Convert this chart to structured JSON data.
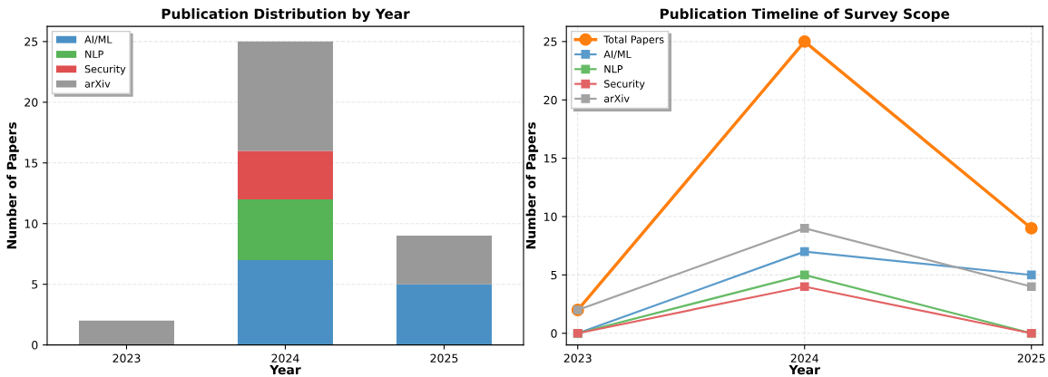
{
  "chart_data": [
    {
      "type": "bar",
      "title": "Publication Distribution by Year",
      "xlabel": "Year",
      "ylabel": "Number of Papers",
      "categories": [
        "2023",
        "2024",
        "2025"
      ],
      "stacked": true,
      "ylim": [
        0,
        26.25
      ],
      "yticks": [
        0,
        5,
        10,
        15,
        20,
        25
      ],
      "grid": "y",
      "legend": "top left",
      "series": [
        {
          "name": "AI/ML",
          "color": "#4a90c4",
          "values": [
            0,
            7,
            5
          ]
        },
        {
          "name": "NLP",
          "color": "#56b356",
          "values": [
            0,
            5,
            0
          ]
        },
        {
          "name": "Security",
          "color": "#df4f50",
          "values": [
            0,
            4,
            0
          ]
        },
        {
          "name": "arXiv",
          "color": "#999999",
          "values": [
            2,
            9,
            4
          ]
        }
      ]
    },
    {
      "type": "line",
      "title": "Publication Timeline of Survey Scope",
      "xlabel": "Year",
      "ylabel": "Number of Papers",
      "categories": [
        "2023",
        "2024",
        "2025"
      ],
      "ylim": [
        -1,
        26.3
      ],
      "yticks": [
        0,
        5,
        10,
        15,
        20,
        25
      ],
      "grid": true,
      "legend": "top left",
      "series": [
        {
          "name": "Total Papers",
          "color": "#ff7f0e",
          "marker": "circle",
          "values": [
            2,
            25,
            9
          ]
        },
        {
          "name": "AI/ML",
          "color": "#5b9bcb",
          "marker": "square",
          "values": [
            0,
            7,
            5
          ]
        },
        {
          "name": "NLP",
          "color": "#66bb66",
          "marker": "square",
          "values": [
            0,
            5,
            0
          ]
        },
        {
          "name": "Security",
          "color": "#e26364",
          "marker": "square",
          "values": [
            0,
            4,
            0
          ]
        },
        {
          "name": "arXiv",
          "color": "#a3a3a3",
          "marker": "square",
          "values": [
            2,
            9,
            4
          ]
        }
      ]
    }
  ]
}
